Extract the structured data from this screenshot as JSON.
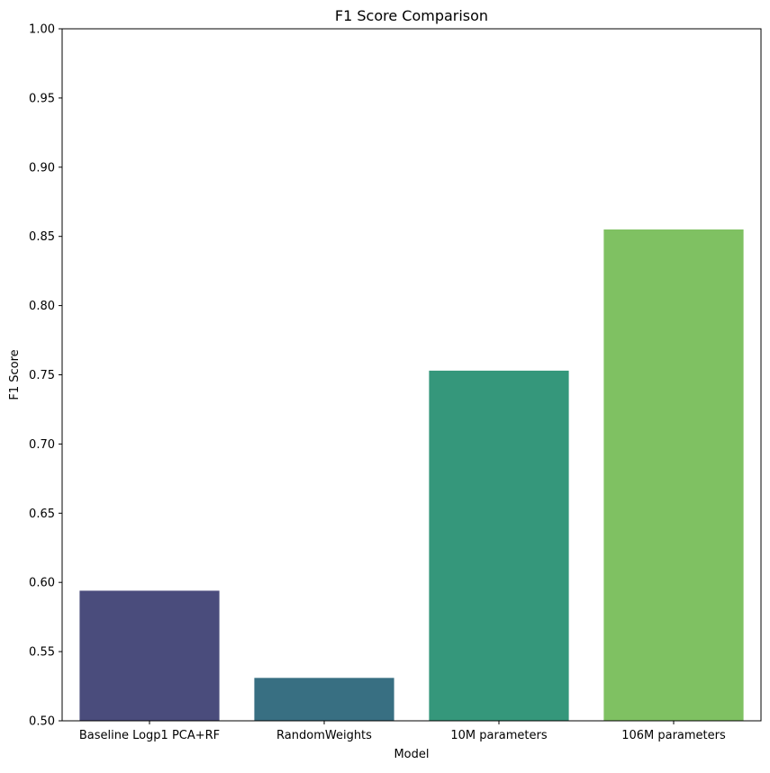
{
  "chart_data": {
    "type": "bar",
    "title": "F1 Score Comparison",
    "xlabel": "Model",
    "ylabel": "F1 Score",
    "categories": [
      "Baseline Logp1 PCA+RF",
      "RandomWeights",
      "10M parameters",
      "106M parameters"
    ],
    "values": [
      0.594,
      0.531,
      0.753,
      0.855
    ],
    "colors": [
      "#4a4c7c",
      "#386f82",
      "#35977b",
      "#7fc162"
    ],
    "ylim": [
      0.5,
      1.0
    ],
    "yticks": [
      "0.50",
      "0.55",
      "0.60",
      "0.65",
      "0.70",
      "0.75",
      "0.80",
      "0.85",
      "0.90",
      "0.95",
      "1.00"
    ],
    "grid": false,
    "legend": "none"
  }
}
